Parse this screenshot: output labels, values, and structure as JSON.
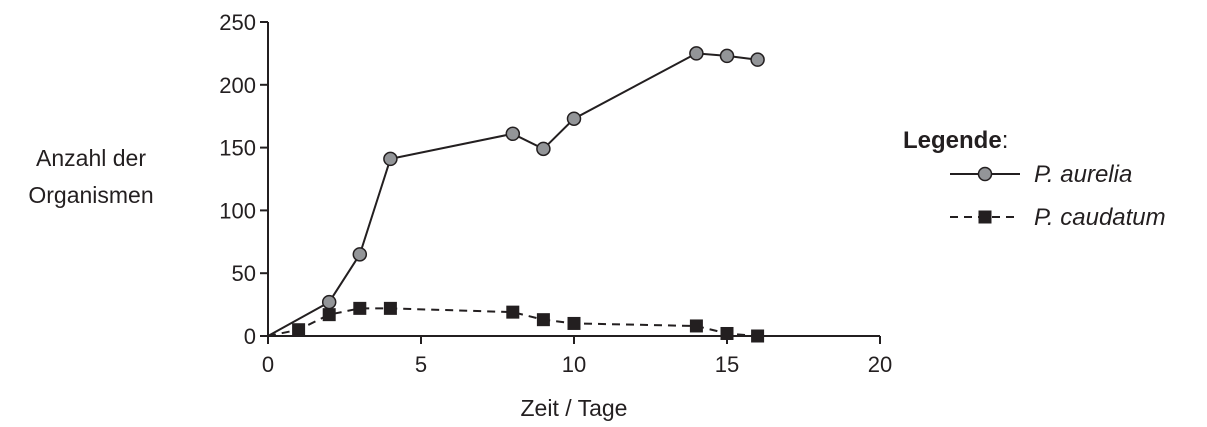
{
  "chart_data": {
    "type": "line",
    "xlabel": "Zeit / Tage",
    "ylabel_lines": [
      "Anzahl der",
      "Organismen"
    ],
    "xlim": [
      0,
      20
    ],
    "ylim": [
      0,
      250
    ],
    "x_ticks": [
      0,
      5,
      10,
      15,
      20
    ],
    "y_ticks": [
      0,
      50,
      100,
      150,
      200,
      250
    ],
    "x_tick_labels": [
      "0",
      "5",
      "10",
      "15",
      "20"
    ],
    "y_tick_labels": [
      "0",
      "50",
      "100",
      "150",
      "200",
      "250"
    ],
    "grid": false,
    "legend": {
      "title": "Legende",
      "title_suffix": ":",
      "placement": "right",
      "entries": [
        "P. aurelia",
        "P. caudatum"
      ]
    },
    "series": [
      {
        "name": "P. aurelia",
        "line_style": "solid",
        "marker": "circle",
        "marker_color": "#939598",
        "x": [
          0,
          2,
          3,
          4,
          8,
          9,
          10,
          14,
          15,
          16
        ],
        "y": [
          0,
          27,
          65,
          141,
          161,
          149,
          173,
          225,
          223,
          220
        ],
        "markers_from_index": 1
      },
      {
        "name": "P. caudatum",
        "line_style": "dashed",
        "marker": "square",
        "marker_color": "#231f20",
        "x": [
          0,
          1,
          2,
          3,
          4,
          8,
          9,
          10,
          14,
          15,
          16
        ],
        "y": [
          0,
          5,
          17,
          22,
          22,
          19,
          13,
          10,
          8,
          2,
          0
        ],
        "markers_from_index": 1
      }
    ]
  }
}
